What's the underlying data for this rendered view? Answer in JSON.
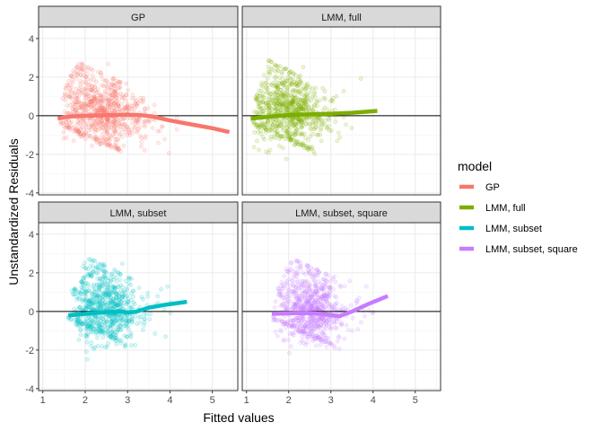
{
  "chart_data": {
    "type": "scatter",
    "title": "",
    "xlabel": "Fitted values",
    "ylabel": "Unstandardized Residuals",
    "xlim": [
      0.9,
      5.6
    ],
    "ylim": [
      -4.1,
      4.6
    ],
    "x_ticks": [
      1,
      2,
      3,
      4,
      5
    ],
    "y_ticks": [
      -4,
      -2,
      0,
      2,
      4
    ],
    "grid": true,
    "reference_line_y": 0,
    "legend": {
      "title": "model",
      "placement": "right",
      "entries": [
        "GP",
        "LMM, full",
        "LMM, subset",
        "LMM, subset, square"
      ]
    },
    "facets": [
      {
        "label": "GP",
        "color": "#F8766D",
        "x_range": [
          1.35,
          5.4
        ],
        "smooth": [
          [
            1.35,
            -0.15
          ],
          [
            1.6,
            -0.05
          ],
          [
            2.0,
            0.0
          ],
          [
            2.5,
            0.02
          ],
          [
            3.0,
            0.05
          ],
          [
            3.3,
            0.03
          ],
          [
            3.6,
            -0.05
          ],
          [
            4.0,
            -0.25
          ],
          [
            4.5,
            -0.45
          ],
          [
            5.0,
            -0.65
          ],
          [
            5.4,
            -0.85
          ]
        ]
      },
      {
        "label": "LMM, full",
        "color": "#7CAE00",
        "x_range": [
          1.1,
          4.1
        ],
        "smooth": [
          [
            1.1,
            -0.15
          ],
          [
            1.4,
            -0.08
          ],
          [
            1.8,
            0.0
          ],
          [
            2.2,
            0.05
          ],
          [
            2.6,
            0.08
          ],
          [
            3.0,
            0.1
          ],
          [
            3.5,
            0.15
          ],
          [
            4.1,
            0.25
          ]
        ]
      },
      {
        "label": "LMM, subset",
        "color": "#00BFC4",
        "x_range": [
          1.6,
          4.4
        ],
        "smooth": [
          [
            1.6,
            -0.2
          ],
          [
            2.0,
            -0.12
          ],
          [
            2.4,
            -0.05
          ],
          [
            2.8,
            0.0
          ],
          [
            3.0,
            -0.05
          ],
          [
            3.2,
            -0.02
          ],
          [
            3.5,
            0.2
          ],
          [
            3.9,
            0.35
          ],
          [
            4.4,
            0.5
          ]
        ]
      },
      {
        "label": "LMM, subset, square",
        "color": "#C77CFF",
        "x_range": [
          1.6,
          4.35
        ],
        "smooth": [
          [
            1.6,
            -0.12
          ],
          [
            2.0,
            -0.1
          ],
          [
            2.4,
            -0.08
          ],
          [
            2.8,
            -0.12
          ],
          [
            3.2,
            -0.25
          ],
          [
            3.5,
            0.0
          ],
          [
            3.9,
            0.4
          ],
          [
            4.35,
            0.8
          ]
        ]
      }
    ]
  }
}
